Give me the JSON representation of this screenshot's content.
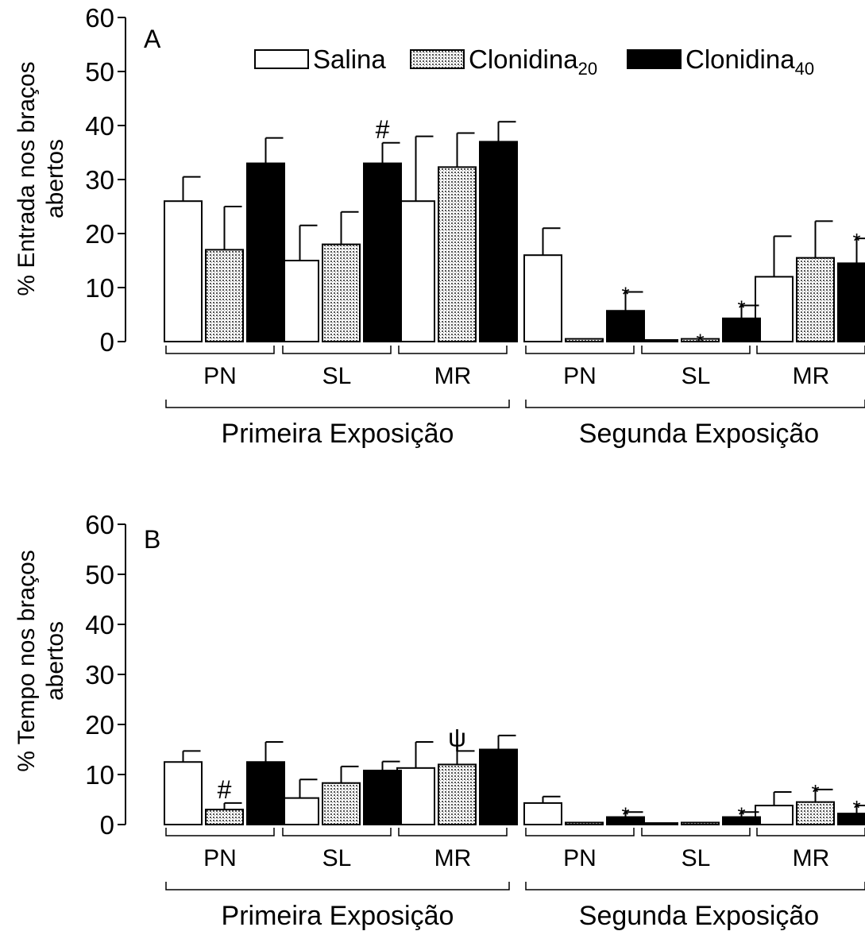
{
  "legend": {
    "items": [
      {
        "name": "Salina",
        "sub": "",
        "pattern": "white"
      },
      {
        "name": "Clonidina",
        "sub": "20",
        "pattern": "dotted"
      },
      {
        "name": "Clonidina",
        "sub": "40",
        "pattern": "black"
      }
    ]
  },
  "chart_data": [
    {
      "type": "bar",
      "panel_label": "A",
      "ylabel_line1": "% Entrada nos braços",
      "ylabel_line2": "abertos",
      "ylim": [
        0,
        60
      ],
      "yticks": [
        0,
        10,
        20,
        30,
        40,
        50,
        60
      ],
      "groups": [
        {
          "name": "Primeira Exposição",
          "categories": [
            "PN",
            "SL",
            "MR"
          ]
        },
        {
          "name": "Segunda Exposição",
          "categories": [
            "PN",
            "SL",
            "MR"
          ]
        }
      ],
      "series": [
        {
          "name": "Salina",
          "values": [
            26,
            15,
            26,
            16,
            0.3,
            12
          ],
          "errors": [
            4.5,
            6.5,
            12,
            5,
            0,
            7.5
          ]
        },
        {
          "name": "Clonidina20",
          "values": [
            17,
            18,
            32.3,
            0.5,
            0.5,
            15.5
          ],
          "errors": [
            8,
            6,
            6.3,
            0,
            0,
            6.8
          ]
        },
        {
          "name": "Clonidina40",
          "values": [
            33,
            33,
            37,
            5.7,
            4.3,
            14.5
          ],
          "errors": [
            4.7,
            3.8,
            3.7,
            3.5,
            2.4,
            4.6
          ]
        }
      ],
      "annotations": [
        {
          "text": "#",
          "category": 1,
          "series": 2
        },
        {
          "text": "*",
          "category": 3,
          "series": 2
        },
        {
          "text": "*",
          "category": 4,
          "series": 1
        },
        {
          "text": "*",
          "category": 4,
          "series": 2
        },
        {
          "text": "*",
          "category": 5,
          "series": 2
        }
      ]
    },
    {
      "type": "bar",
      "panel_label": "B",
      "ylabel_line1": "% Tempo nos braços",
      "ylabel_line2": "abertos",
      "ylim": [
        0,
        60
      ],
      "yticks": [
        0,
        10,
        20,
        30,
        40,
        50,
        60
      ],
      "groups": [
        {
          "name": "Primeira Exposição",
          "categories": [
            "PN",
            "SL",
            "MR"
          ]
        },
        {
          "name": "Segunda Exposição",
          "categories": [
            "PN",
            "SL",
            "MR"
          ]
        }
      ],
      "series": [
        {
          "name": "Salina",
          "values": [
            12.5,
            5.3,
            11.3,
            4.3,
            0.3,
            3.8
          ],
          "errors": [
            2.2,
            3.7,
            5.2,
            1.3,
            0,
            2.7
          ]
        },
        {
          "name": "Clonidina20",
          "values": [
            3,
            8.3,
            12,
            0.4,
            0.4,
            4.5
          ],
          "errors": [
            1.3,
            3.3,
            2.7,
            0,
            0,
            2.5
          ]
        },
        {
          "name": "Clonidina40",
          "values": [
            12.5,
            10.8,
            15,
            1.5,
            1.5,
            2.2
          ],
          "errors": [
            4,
            1.8,
            2.8,
            1,
            1,
            1.6
          ]
        }
      ],
      "annotations": [
        {
          "text": "#",
          "category": 0,
          "series": 1
        },
        {
          "text": "ψ",
          "category": 2,
          "series": 1
        },
        {
          "text": "*",
          "category": 3,
          "series": 2
        },
        {
          "text": "*",
          "category": 4,
          "series": 2
        },
        {
          "text": "*",
          "category": 5,
          "series": 1
        },
        {
          "text": "*",
          "category": 5,
          "series": 2
        }
      ]
    }
  ]
}
